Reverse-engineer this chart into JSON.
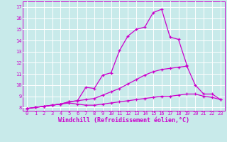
{
  "xlabel": "Windchill (Refroidissement éolien,°C)",
  "bg_color": "#c8eaea",
  "grid_color": "#ffffff",
  "line_color": "#cc00cc",
  "x_values": [
    0,
    1,
    2,
    3,
    4,
    5,
    6,
    7,
    8,
    9,
    10,
    11,
    12,
    13,
    14,
    15,
    16,
    17,
    18,
    19,
    20,
    21,
    22,
    23
  ],
  "line1": [
    7.9,
    8.0,
    8.1,
    8.2,
    8.3,
    8.5,
    8.6,
    9.8,
    9.7,
    10.9,
    11.1,
    13.1,
    14.4,
    15.0,
    15.2,
    16.5,
    16.8,
    14.3,
    14.1,
    11.8,
    null,
    null,
    null,
    null
  ],
  "line2": [
    7.9,
    8.0,
    8.1,
    8.2,
    8.3,
    8.5,
    8.6,
    8.7,
    8.8,
    9.1,
    9.4,
    9.7,
    10.1,
    10.5,
    10.9,
    11.2,
    11.4,
    11.5,
    11.6,
    11.7,
    10.0,
    9.2,
    9.2,
    8.7
  ],
  "line3": [
    7.9,
    8.0,
    8.1,
    8.2,
    8.3,
    8.4,
    8.3,
    8.2,
    8.2,
    8.3,
    8.4,
    8.5,
    8.6,
    8.7,
    8.8,
    8.9,
    9.0,
    9.0,
    9.1,
    9.2,
    9.2,
    9.0,
    8.9,
    8.7
  ],
  "ylim": [
    7.7,
    17.5
  ],
  "xlim": [
    -0.5,
    23.5
  ],
  "yticks": [
    8,
    9,
    10,
    11,
    12,
    13,
    14,
    15,
    16,
    17
  ],
  "xticks": [
    0,
    1,
    2,
    3,
    4,
    5,
    6,
    7,
    8,
    9,
    10,
    11,
    12,
    13,
    14,
    15,
    16,
    17,
    18,
    19,
    20,
    21,
    22,
    23
  ],
  "tick_fontsize": 5.0,
  "xlabel_fontsize": 6.0,
  "line_width": 0.9,
  "marker_size": 2.5
}
